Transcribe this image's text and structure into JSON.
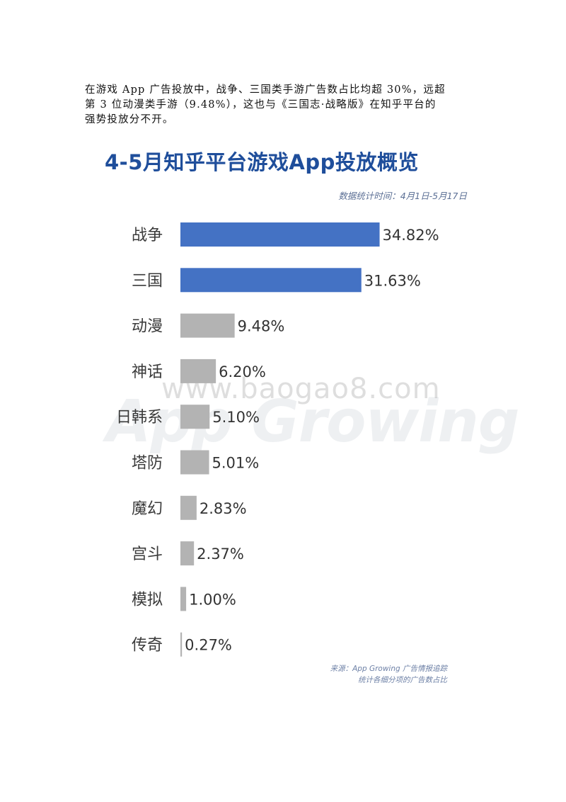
{
  "intro": {
    "line1": "在游戏 App 广告投放中，战争、三国类手游广告数占比均超 30%，远超",
    "line2": "第 3 位动漫类手游（9.48%），这也与《三国志·战略版》在知乎平台的",
    "line3": "强势投放分不开。"
  },
  "watermark": {
    "url": "www.baogao8.com",
    "logo": "App Growing"
  },
  "chart_data": {
    "type": "bar",
    "orientation": "horizontal",
    "title": "4-5月知乎平台游戏App投放概览",
    "subtitle": "数据统计时间：4月1日-5月17日",
    "categories": [
      "战争",
      "三国",
      "动漫",
      "神话",
      "日韩系",
      "塔防",
      "魔幻",
      "宫斗",
      "模拟",
      "传奇"
    ],
    "values": [
      34.82,
      31.63,
      9.48,
      6.2,
      5.1,
      5.01,
      2.83,
      2.37,
      1.0,
      0.27
    ],
    "value_labels": [
      "34.82%",
      "31.63%",
      "9.48%",
      "6.20%",
      "5.10%",
      "5.01%",
      "2.83%",
      "2.37%",
      "1.00%",
      "0.27%"
    ],
    "highlight_count": 2,
    "colors": {
      "highlight": "#4472c4",
      "normal": "#b3b3b3",
      "title": "#1f4e9b"
    },
    "xlim": [
      0,
      35
    ],
    "grid": false,
    "source_line1": "来源：App Growing 广告情报追踪",
    "source_line2": "统计各细分项的广告数占比"
  }
}
